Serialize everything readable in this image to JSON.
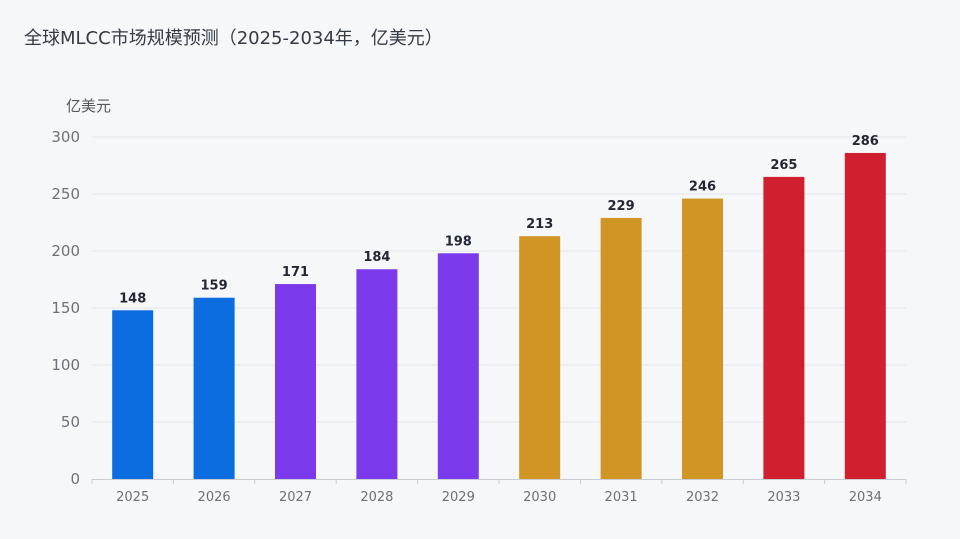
{
  "chart_data": {
    "type": "bar",
    "title": "全球MLCC市场规模预测（2025-2034年，亿美元）",
    "ylabel": "亿美元",
    "xlabel": "",
    "categories": [
      "2025",
      "2026",
      "2027",
      "2028",
      "2029",
      "2030",
      "2031",
      "2032",
      "2033",
      "2034"
    ],
    "values": [
      148,
      159,
      171,
      184,
      198,
      213,
      229,
      246,
      265,
      286
    ],
    "bar_colors": [
      "#0b6ddf",
      "#0b6ddf",
      "#7c3aed",
      "#7c3aed",
      "#7c3aed",
      "#d09524",
      "#d09524",
      "#d09524",
      "#d0202f",
      "#d0202f"
    ],
    "ylim": [
      0,
      300
    ],
    "yticks": [
      0,
      50,
      100,
      150,
      200,
      250,
      300
    ],
    "grid": true,
    "data_labels": true
  }
}
